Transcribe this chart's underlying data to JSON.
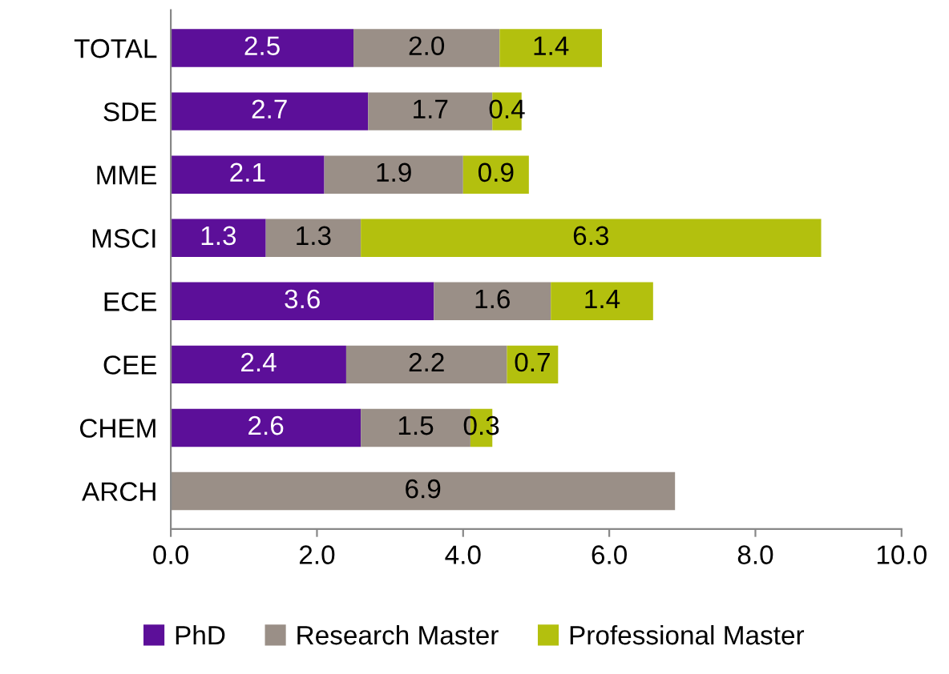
{
  "chart_data": {
    "type": "bar",
    "orientation": "horizontal",
    "stacked": true,
    "legend": "bottom",
    "categories": [
      "TOTAL",
      "SDE",
      "MME",
      "MSCI",
      "ECE",
      "CEE",
      "CHEM",
      "ARCH"
    ],
    "series": [
      {
        "name": "PhD",
        "color": "#5c0f99",
        "values": [
          2.5,
          2.7,
          2.1,
          1.3,
          3.6,
          2.4,
          2.6,
          null
        ],
        "value_labels": [
          "2.5",
          "2.7",
          "2.1",
          "1.3",
          "3.6",
          "2.4",
          "2.6",
          null
        ]
      },
      {
        "name": "Research Master",
        "color": "#9a8f87",
        "values": [
          2.0,
          1.7,
          1.9,
          1.3,
          1.6,
          2.2,
          1.5,
          6.9
        ],
        "value_labels": [
          "2.0",
          "1.7",
          "1.9",
          "1.3",
          "1.6",
          "2.2",
          "1.5",
          "6.9"
        ]
      },
      {
        "name": "Professional Master",
        "color": "#b3c00e",
        "values": [
          1.4,
          0.4,
          0.9,
          6.3,
          1.4,
          0.7,
          0.3,
          null
        ],
        "value_labels": [
          "1.4",
          "0.4",
          "0.9",
          "6.3",
          "1.4",
          "0.7",
          "0.3",
          null
        ]
      }
    ],
    "xlim": [
      0,
      10
    ],
    "xticks": [
      {
        "value": 0,
        "label": "0.0"
      },
      {
        "value": 2,
        "label": "2.0"
      },
      {
        "value": 4,
        "label": "4.0"
      },
      {
        "value": 6,
        "label": "6.0"
      },
      {
        "value": 8,
        "label": "8.0"
      },
      {
        "value": 10,
        "label": "10.0"
      }
    ]
  }
}
